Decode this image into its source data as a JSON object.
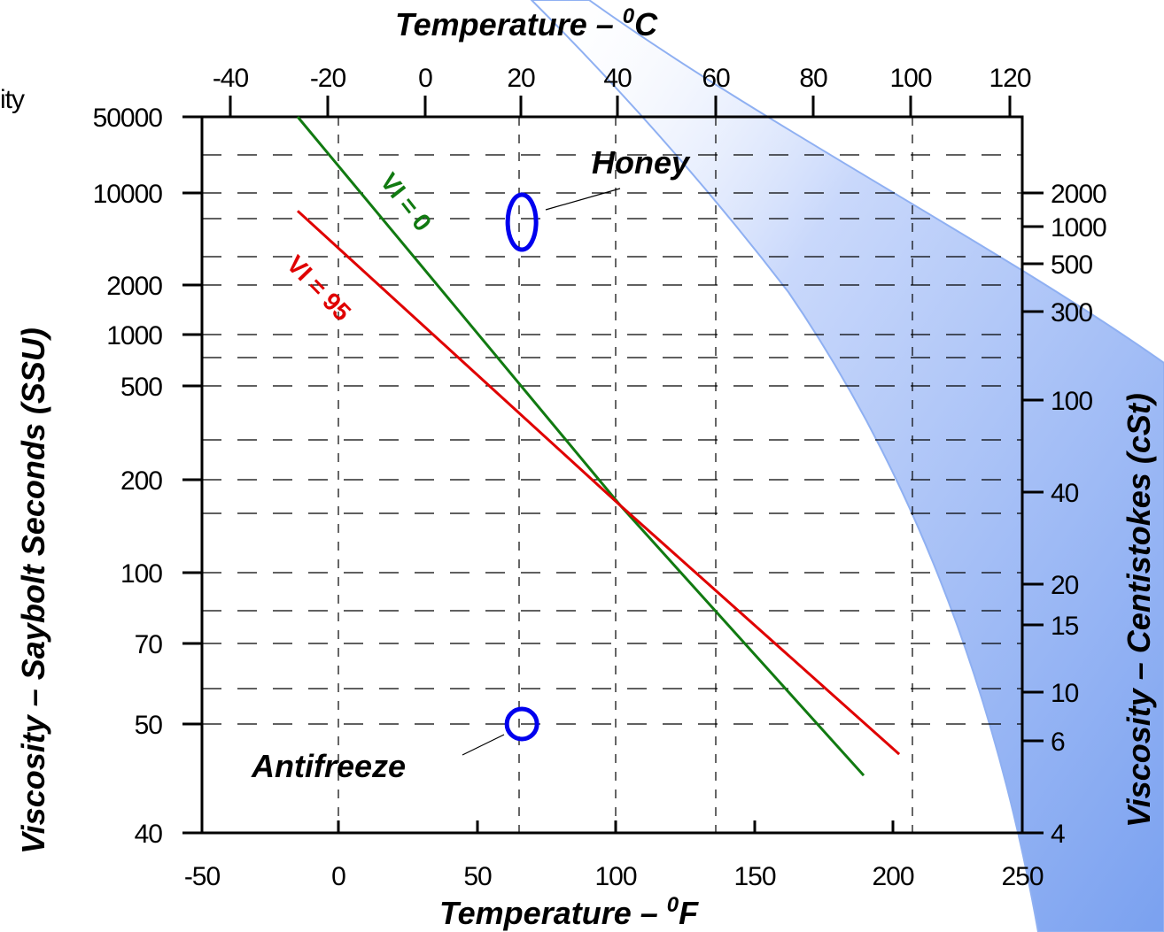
{
  "chart_data": {
    "type": "line",
    "title_fragment": "ity",
    "top_axis_title": "Temperature – ",
    "top_axis_unit": "C",
    "top_axis_degree": "0",
    "bottom_axis_title": "Temperature – ",
    "bottom_axis_unit": "F",
    "bottom_axis_degree": "0",
    "left_axis_title": "Viscosity – Saybolt Seconds (SSU)",
    "right_axis_title": "Viscosity – Centistokes (cSt)",
    "xlim_f": [
      -50,
      250
    ],
    "x_ticks_f": [
      "-50",
      "0",
      "50",
      "100",
      "150",
      "200",
      "250"
    ],
    "x_ticks_c": [
      "-40",
      "-20",
      "0",
      "20",
      "40",
      "60",
      "80",
      "100",
      "120"
    ],
    "y_ticks_ssu": [
      "50000",
      "10000",
      "2000",
      "1000",
      "500",
      "200",
      "100",
      "70",
      "50",
      "40"
    ],
    "y_ticks_cst": [
      "2000",
      "1000",
      "500",
      "300",
      "100",
      "40",
      "20",
      "15",
      "10",
      "6",
      "4"
    ],
    "series": [
      {
        "name": "VI = 0",
        "color": "#117a11",
        "points": [
          {
            "x": -15,
            "y": 50000
          },
          {
            "x": 103,
            "y": 165
          },
          {
            "x": 192,
            "y": 45
          }
        ]
      },
      {
        "name": "VI = 95",
        "color": "#e00000",
        "points": [
          {
            "x": -15,
            "y": 7300
          },
          {
            "x": 103,
            "y": 165
          },
          {
            "x": 205,
            "y": 47
          }
        ]
      }
    ],
    "annotations": [
      {
        "label": "Honey",
        "x": 67,
        "y": 6000,
        "marker": "ellipse",
        "color": "#0000ee"
      },
      {
        "label": "Antifreeze",
        "x": 67,
        "y": 50,
        "marker": "circle",
        "color": "#0000ee"
      }
    ],
    "grid": true,
    "background_band_color": "#7aa1f0"
  }
}
